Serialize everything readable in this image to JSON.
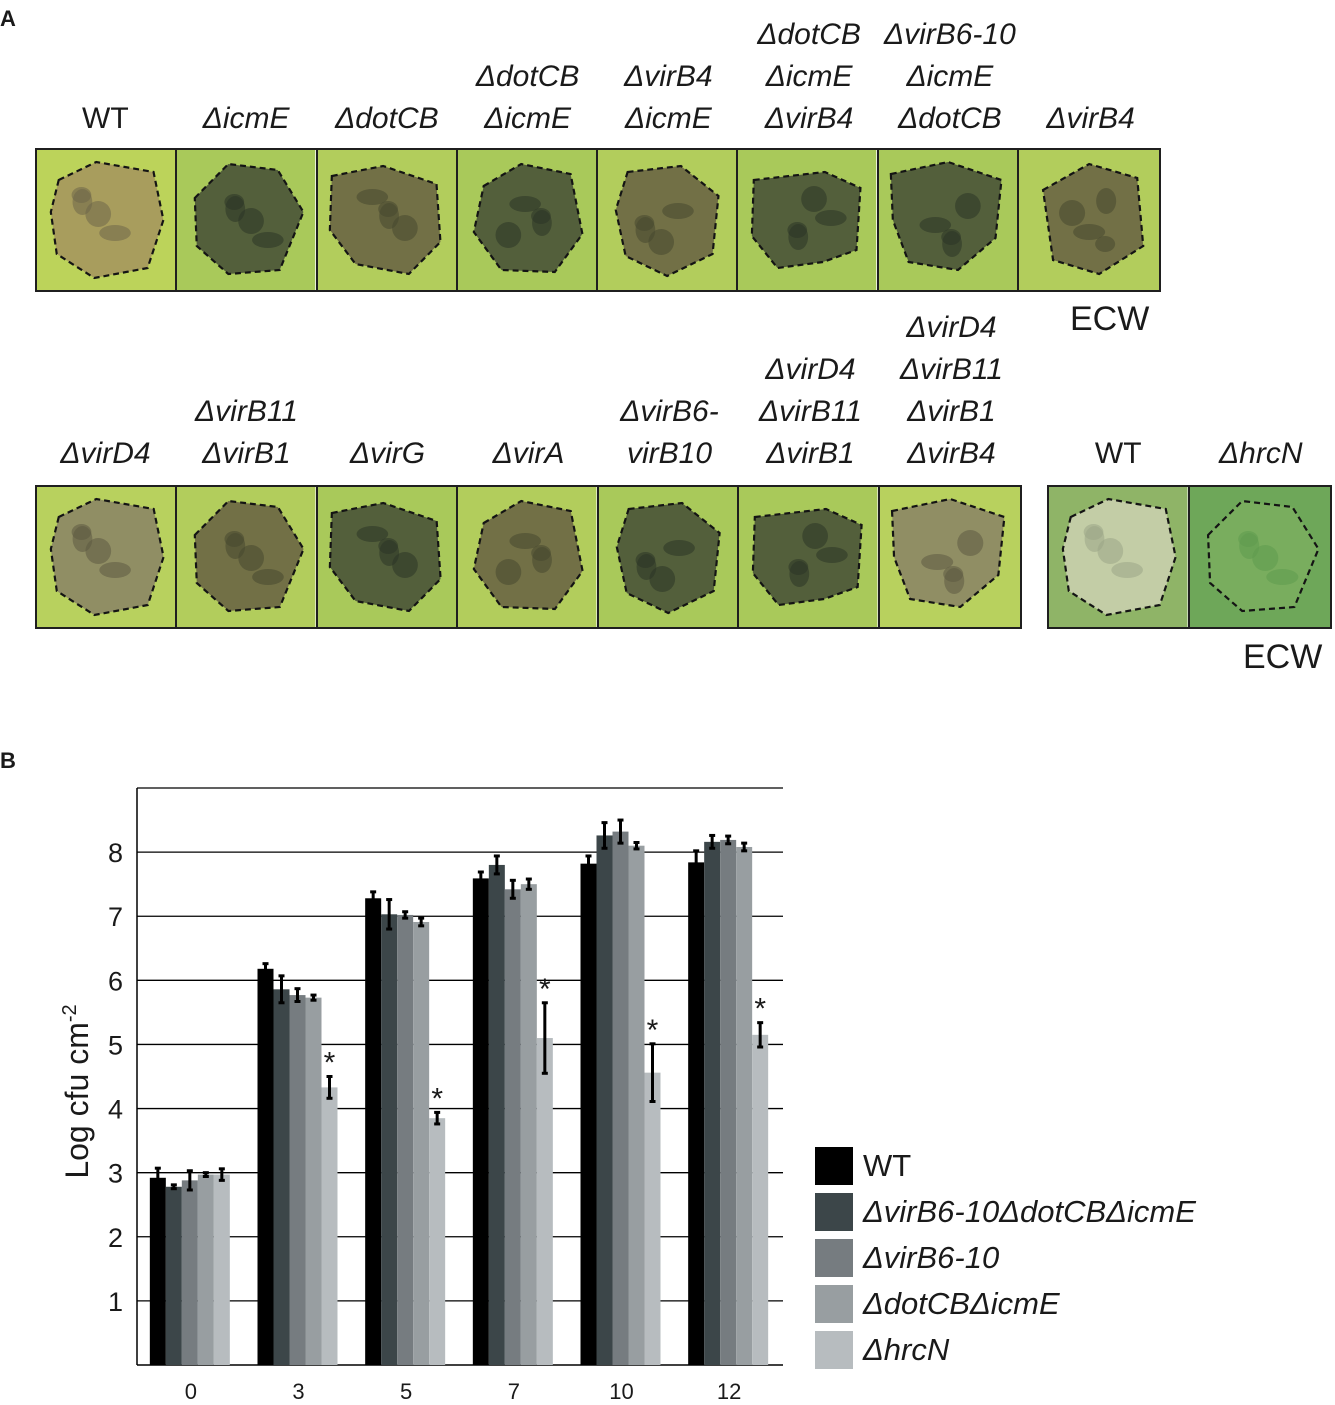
{
  "panel_a": {
    "letter": "A",
    "top_row": [
      {
        "lines": [
          "WT"
        ],
        "upright": true,
        "tone": "yellow-brown"
      },
      {
        "lines": [
          "ΔicmE"
        ],
        "tone": "dark"
      },
      {
        "lines": [
          "ΔdotCB"
        ],
        "tone": "brown"
      },
      {
        "lines": [
          "ΔdotCB",
          "ΔicmE"
        ],
        "tone": "dark"
      },
      {
        "lines": [
          "ΔvirB4",
          "ΔicmE"
        ],
        "tone": "brown"
      },
      {
        "lines": [
          "ΔdotCB",
          "ΔicmE",
          "ΔvirB4"
        ],
        "tone": "dark"
      },
      {
        "lines": [
          "ΔvirB6-10",
          "ΔicmE",
          "ΔdotCB"
        ],
        "tone": "dark"
      },
      {
        "lines": [
          "ΔvirB4"
        ],
        "tone": "brown"
      }
    ],
    "top_ecw": "ECW",
    "bottom_row": [
      {
        "lines": [
          "ΔvirD4"
        ],
        "tone": "light-brown"
      },
      {
        "lines": [
          "ΔvirB11",
          "ΔvirB1"
        ],
        "tone": "brown"
      },
      {
        "lines": [
          "ΔvirG"
        ],
        "tone": "dark"
      },
      {
        "lines": [
          "ΔvirA"
        ],
        "tone": "brown"
      },
      {
        "lines": [
          "ΔvirB6-",
          "virB10"
        ],
        "tone": "dark"
      },
      {
        "lines": [
          "ΔvirD4",
          "ΔvirB11",
          "ΔvirB1"
        ],
        "tone": "dark"
      },
      {
        "lines": [
          "ΔvirD4",
          "ΔvirB11",
          "ΔvirB1",
          "ΔvirB4"
        ],
        "tone": "light-brown"
      }
    ],
    "control_row": [
      {
        "lines": [
          "WT"
        ],
        "upright": true,
        "tone": "pale"
      },
      {
        "lines": [
          "ΔhrcN"
        ],
        "tone": "green"
      }
    ],
    "bottom_ecw": "ECW"
  },
  "panel_b": {
    "letter": "B"
  },
  "chart_data": {
    "type": "bar",
    "title": "",
    "xlabel": "",
    "ylabel": "Log cfu cm",
    "ylabel_superscript": "-2",
    "ylim": [
      0,
      9
    ],
    "yticks": [
      1,
      2,
      3,
      4,
      5,
      6,
      7,
      8
    ],
    "grid": "horizontal",
    "legend_position": "bottom-right, outside plot",
    "categories": [
      "0",
      "3",
      "5",
      "7",
      "10",
      "12"
    ],
    "series": [
      {
        "name": "WT",
        "upright": true,
        "color": "#000000",
        "values": [
          2.92,
          6.18,
          7.28,
          7.59,
          7.82,
          7.84
        ],
        "errors": [
          0.15,
          0.08,
          0.1,
          0.1,
          0.12,
          0.18
        ]
      },
      {
        "name": "ΔvirB6-10ΔdotCBΔicmE",
        "color": "#3c4649",
        "values": [
          2.78,
          5.86,
          7.03,
          7.8,
          8.26,
          8.16
        ],
        "errors": [
          0.03,
          0.21,
          0.23,
          0.14,
          0.2,
          0.1
        ]
      },
      {
        "name": "ΔvirB6-10",
        "color": "#767c80",
        "values": [
          2.88,
          5.77,
          7.02,
          7.42,
          8.32,
          8.19
        ],
        "errors": [
          0.15,
          0.1,
          0.05,
          0.14,
          0.18,
          0.06
        ]
      },
      {
        "name": "ΔdotCBΔicmE",
        "color": "#989ea1",
        "values": [
          2.97,
          5.73,
          6.91,
          7.5,
          8.1,
          8.08
        ],
        "errors": [
          0.03,
          0.04,
          0.06,
          0.08,
          0.05,
          0.06
        ]
      },
      {
        "name": "ΔhrcN",
        "color": "#b7bcbf",
        "values": [
          2.97,
          4.33,
          3.85,
          5.1,
          4.56,
          5.15
        ],
        "errors": [
          0.09,
          0.17,
          0.09,
          0.55,
          0.45,
          0.19
        ],
        "significance": [
          "",
          "*",
          "*",
          "*",
          "*",
          "*"
        ]
      }
    ]
  }
}
